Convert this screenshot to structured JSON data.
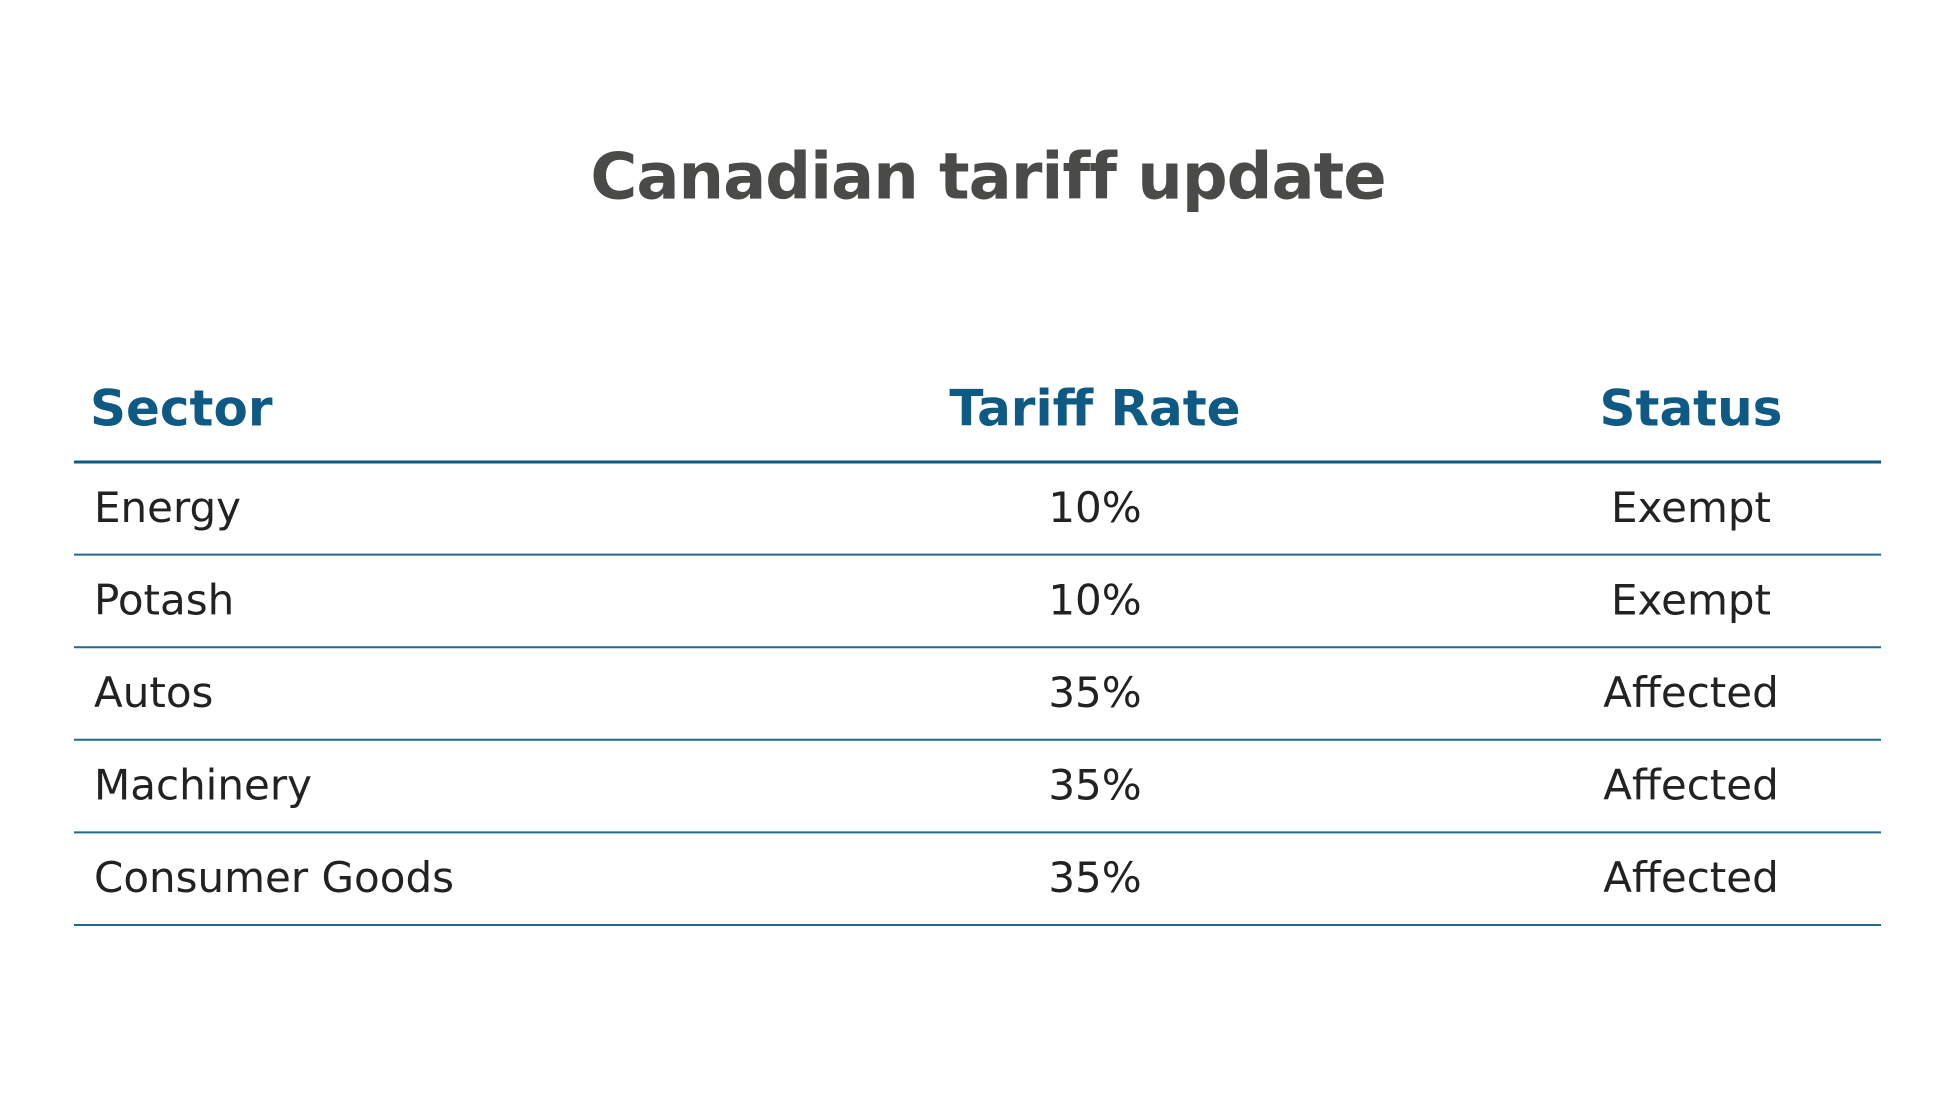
{
  "title": "Canadian tariff update",
  "table": {
    "headers": [
      "Sector",
      "Tariff Rate",
      "Status"
    ],
    "rows": [
      [
        "Energy",
        "10%",
        "Exempt"
      ],
      [
        "Potash",
        "10%",
        "Exempt"
      ],
      [
        "Autos",
        "35%",
        "Affected"
      ],
      [
        "Machinery",
        "35%",
        "Affected"
      ],
      [
        "Consumer Goods",
        "35%",
        "Affected"
      ]
    ]
  }
}
